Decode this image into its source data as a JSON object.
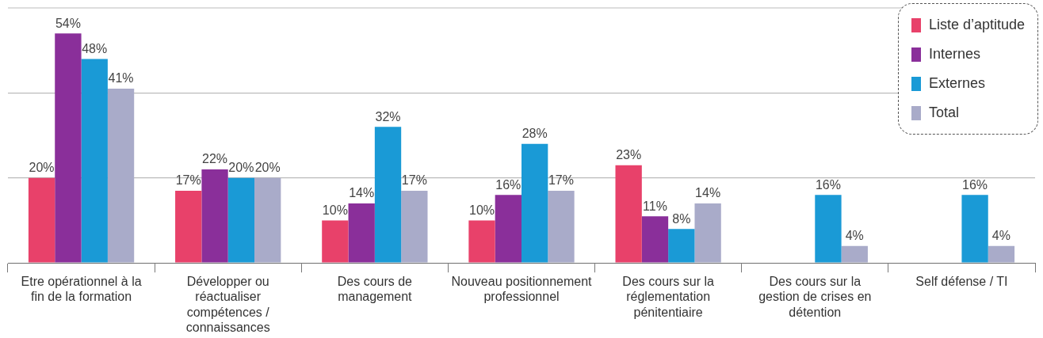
{
  "chart_data": {
    "type": "bar",
    "categories": [
      "Etre opérationnel à la fin de la formation",
      "Développer ou réactualiser compétences / connaissances",
      "Des cours de management",
      "Nouveau positionnement professionnel",
      "Des cours sur la réglementation pénitentiaire",
      "Des cours sur la gestion de crises en détention",
      "Self défense / TI"
    ],
    "series": [
      {
        "name": "Liste d’aptitude",
        "color": "#e8416a",
        "values": [
          20,
          17,
          10,
          10,
          23,
          null,
          null
        ],
        "value_labels": [
          "20%",
          "17%",
          "10%",
          "10%",
          "23%",
          null,
          null
        ]
      },
      {
        "name": "Internes",
        "color": "#8a2f9a",
        "values": [
          54,
          22,
          14,
          16,
          11,
          null,
          null
        ],
        "value_labels": [
          "54%",
          "22%",
          "14%",
          "16%",
          "11%",
          null,
          null
        ]
      },
      {
        "name": "Externes",
        "color": "#1a9ad6",
        "values": [
          48,
          20,
          32,
          28,
          8,
          16,
          16
        ],
        "value_labels": [
          "48%",
          "20%",
          "32%",
          "28%",
          "8%",
          "16%",
          "16%"
        ]
      },
      {
        "name": "Total",
        "color": "#a9abc9",
        "values": [
          41,
          20,
          17,
          17,
          14,
          4,
          4
        ],
        "value_labels": [
          "41%",
          "20%",
          "17%",
          "17%",
          "14%",
          "4%",
          "4%"
        ]
      }
    ],
    "ylim": [
      0,
      60
    ],
    "yticks": [
      {
        "value": 0,
        "label": null
      },
      {
        "value": 20,
        "label": null
      },
      {
        "value": 40,
        "label": null
      }
    ],
    "grid": "y",
    "tick_labels": "x",
    "legend": "top right"
  }
}
